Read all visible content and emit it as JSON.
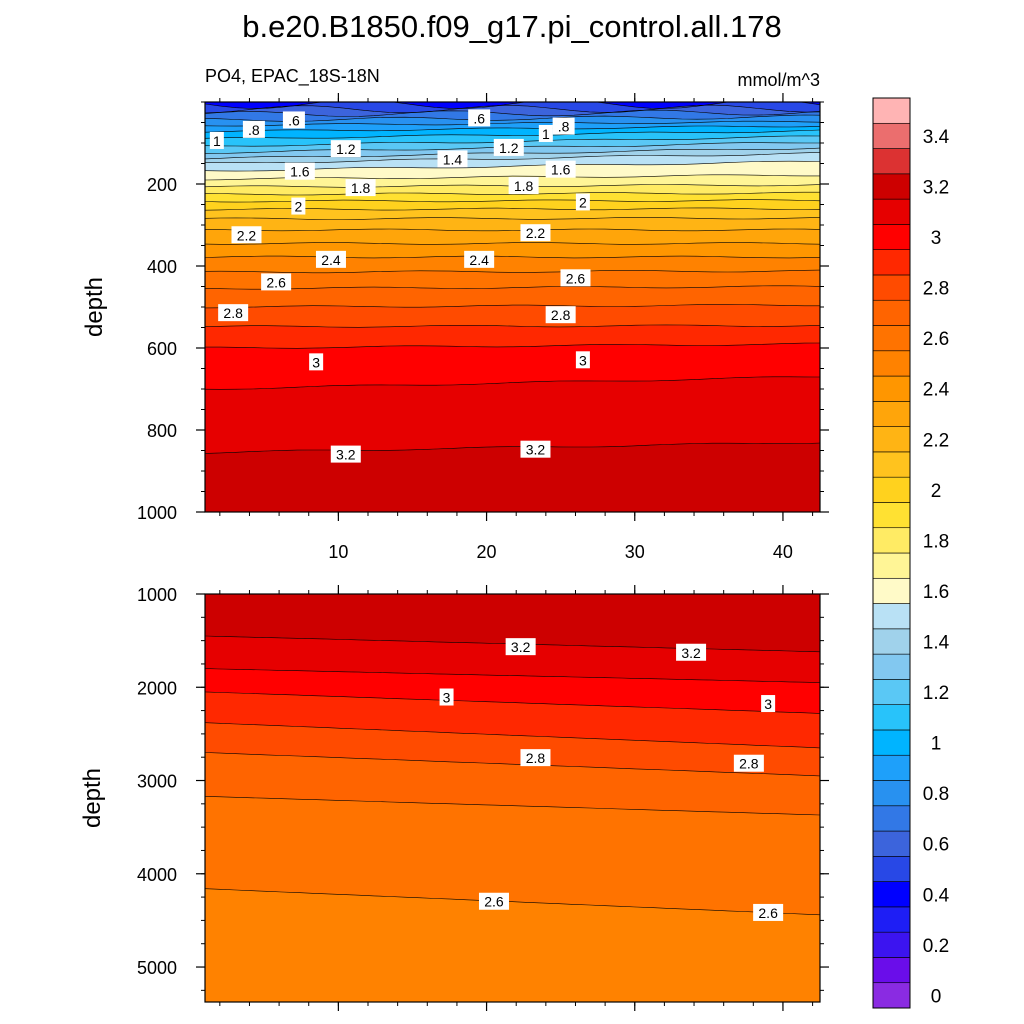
{
  "chart_data": {
    "type": "contour",
    "title": "b.e20.B1850.f09_g17.pi_control.all.178",
    "variable_label": "PO4, EPAC_18S-18N",
    "units": "mmol/m^3",
    "colorbar": {
      "levels": [
        0,
        0.1,
        0.2,
        0.3,
        0.4,
        0.5,
        0.6,
        0.7,
        0.8,
        0.9,
        1.0,
        1.1,
        1.2,
        1.3,
        1.4,
        1.5,
        1.6,
        1.7,
        1.8,
        1.9,
        2.0,
        2.1,
        2.2,
        2.3,
        2.4,
        2.5,
        2.6,
        2.7,
        2.8,
        2.9,
        3.0,
        3.1,
        3.2,
        3.3,
        3.4,
        3.5
      ],
      "tick_labels": [
        "0",
        "0.2",
        "0.4",
        "0.6",
        "0.8",
        "1",
        "1.2",
        "1.4",
        "1.6",
        "1.8",
        "2",
        "2.2",
        "2.4",
        "2.6",
        "2.8",
        "3",
        "3.2",
        "3.4"
      ],
      "colors": [
        "#8a2be2",
        "#6a0dea",
        "#3c14f0",
        "#1e1ef5",
        "#0000ff",
        "#2848e6",
        "#3c64dc",
        "#3278e6",
        "#2891f0",
        "#1ea0fa",
        "#00b4ff",
        "#28c3fa",
        "#5ac8f5",
        "#82c8f0",
        "#a0d2eb",
        "#b9e1f5",
        "#fffac8",
        "#fff596",
        "#ffeb64",
        "#ffe132",
        "#ffd21e",
        "#ffc31e",
        "#ffb414",
        "#ffa50a",
        "#ff9600",
        "#ff8200",
        "#ff7300",
        "#ff6400",
        "#ff4b00",
        "#ff2800",
        "#ff0000",
        "#e60000",
        "#cd0000",
        "#dc3232",
        "#eb6e6e",
        "#ffb4b4"
      ]
    },
    "panels": [
      {
        "name": "upper",
        "x_ticks": [
          "10",
          "20",
          "30",
          "40"
        ],
        "x_tick_values": [
          10,
          20,
          30,
          40
        ],
        "x_range": [
          1,
          42.5
        ],
        "y_ticks": [
          "200",
          "400",
          "600",
          "800",
          "1000"
        ],
        "y_tick_values": [
          200,
          400,
          600,
          800,
          1000
        ],
        "y_range": [
          0,
          1000
        ],
        "y_label": "depth",
        "contours": [
          {
            "v": 0.5,
            "left": 5,
            "right": 5
          },
          {
            "v": 0.6,
            "left": 18,
            "right": 16
          },
          {
            "v": 0.7,
            "left": 30,
            "right": 25
          },
          {
            "v": 0.8,
            "left": 44,
            "right": 36
          },
          {
            "v": 0.9,
            "left": 57,
            "right": 48
          },
          {
            "v": 1.0,
            "left": 72,
            "right": 58
          },
          {
            "v": 1.1,
            "left": 90,
            "right": 70
          },
          {
            "v": 1.2,
            "left": 108,
            "right": 84
          },
          {
            "v": 1.3,
            "left": 124,
            "right": 98
          },
          {
            "v": 1.4,
            "left": 138,
            "right": 112
          },
          {
            "v": 1.5,
            "left": 150,
            "right": 125
          },
          {
            "v": 1.6,
            "left": 168,
            "right": 145
          },
          {
            "v": 1.7,
            "left": 188,
            "right": 178
          },
          {
            "v": 1.8,
            "left": 207,
            "right": 202
          },
          {
            "v": 1.9,
            "left": 225,
            "right": 222
          },
          {
            "v": 2.0,
            "left": 242,
            "right": 240
          },
          {
            "v": 2.1,
            "left": 262,
            "right": 260
          },
          {
            "v": 2.2,
            "left": 285,
            "right": 283
          },
          {
            "v": 2.3,
            "left": 312,
            "right": 312
          },
          {
            "v": 2.4,
            "left": 345,
            "right": 345
          },
          {
            "v": 2.5,
            "left": 378,
            "right": 378
          },
          {
            "v": 2.6,
            "left": 415,
            "right": 412
          },
          {
            "v": 2.7,
            "left": 455,
            "right": 450
          },
          {
            "v": 2.8,
            "left": 500,
            "right": 495
          },
          {
            "v": 2.9,
            "left": 548,
            "right": 545
          },
          {
            "v": 3.0,
            "left": 600,
            "right": 590
          },
          {
            "v": 3.1,
            "left": 700,
            "right": 670
          },
          {
            "v": 3.2,
            "left": 855,
            "right": 830
          }
        ],
        "contour_labels": [
          {
            "text": ".6",
            "x": 7.0,
            "y": 45
          },
          {
            "text": ".8",
            "x": 4.3,
            "y": 68
          },
          {
            "text": "1",
            "x": 1.8,
            "y": 95
          },
          {
            "text": ".6",
            "x": 19.5,
            "y": 40
          },
          {
            "text": ".8",
            "x": 25.2,
            "y": 60
          },
          {
            "text": "1",
            "x": 24.0,
            "y": 78
          },
          {
            "text": "1.2",
            "x": 10.5,
            "y": 115
          },
          {
            "text": "1.2",
            "x": 21.5,
            "y": 112
          },
          {
            "text": "1.4",
            "x": 17.7,
            "y": 140
          },
          {
            "text": "1.6",
            "x": 7.4,
            "y": 170
          },
          {
            "text": "1.6",
            "x": 25.0,
            "y": 165
          },
          {
            "text": "1.8",
            "x": 11.5,
            "y": 210
          },
          {
            "text": "1.8",
            "x": 22.5,
            "y": 205
          },
          {
            "text": "2",
            "x": 7.3,
            "y": 255
          },
          {
            "text": "2",
            "x": 26.5,
            "y": 245
          },
          {
            "text": "2.2",
            "x": 3.8,
            "y": 325
          },
          {
            "text": "2.2",
            "x": 23.3,
            "y": 320
          },
          {
            "text": "2.4",
            "x": 9.5,
            "y": 385
          },
          {
            "text": "2.4",
            "x": 19.5,
            "y": 385
          },
          {
            "text": "2.6",
            "x": 5.8,
            "y": 440
          },
          {
            "text": "2.6",
            "x": 26.0,
            "y": 430
          },
          {
            "text": "2.8",
            "x": 2.9,
            "y": 515
          },
          {
            "text": "2.8",
            "x": 25.0,
            "y": 520
          },
          {
            "text": "3",
            "x": 8.5,
            "y": 635
          },
          {
            "text": "3",
            "x": 26.5,
            "y": 630
          },
          {
            "text": "3.2",
            "x": 10.5,
            "y": 860
          },
          {
            "text": "3.2",
            "x": 23.3,
            "y": 848
          }
        ]
      },
      {
        "name": "lower",
        "x_tick_values": [
          10,
          20,
          30,
          40
        ],
        "x_range": [
          1,
          42.5
        ],
        "y_ticks": [
          "1000",
          "2000",
          "3000",
          "4000",
          "5000"
        ],
        "y_tick_values": [
          1000,
          2000,
          3000,
          4000,
          5000
        ],
        "y_range": [
          1000,
          5375
        ],
        "y_label": "depth",
        "contours": [
          {
            "v": 3.2,
            "left": 1450,
            "right": 1620
          },
          {
            "v": 3.1,
            "left": 1800,
            "right": 1950
          },
          {
            "v": 3.0,
            "left": 2050,
            "right": 2280
          },
          {
            "v": 2.9,
            "left": 2380,
            "right": 2650
          },
          {
            "v": 2.8,
            "left": 2700,
            "right": 2950
          },
          {
            "v": 2.7,
            "left": 3170,
            "right": 3370
          },
          {
            "v": 2.6,
            "left": 4160,
            "right": 4440
          }
        ],
        "contour_labels": [
          {
            "text": "3.2",
            "x": 22.3,
            "y": 1570
          },
          {
            "text": "3.2",
            "x": 33.8,
            "y": 1630
          },
          {
            "text": "3",
            "x": 17.3,
            "y": 2110
          },
          {
            "text": "3",
            "x": 39.0,
            "y": 2180
          },
          {
            "text": "2.8",
            "x": 23.3,
            "y": 2760
          },
          {
            "text": "2.8",
            "x": 37.7,
            "y": 2820
          },
          {
            "text": "2.6",
            "x": 20.5,
            "y": 4300
          },
          {
            "text": "2.6",
            "x": 39.0,
            "y": 4420
          }
        ]
      }
    ]
  }
}
